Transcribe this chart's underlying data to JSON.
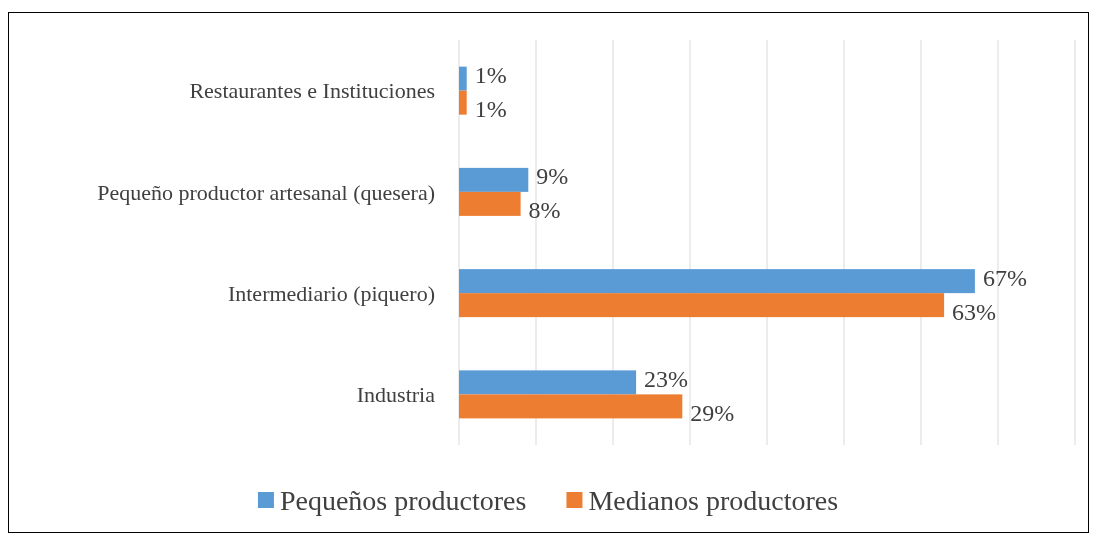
{
  "chart_data": {
    "type": "bar",
    "orientation": "horizontal",
    "categories": [
      "Restaurantes e Instituciones",
      "Pequeño productor artesanal (quesera)",
      "Intermediario (piquero)",
      "Industria"
    ],
    "series": [
      {
        "name": "Pequeños productores",
        "color": "#5b9bd5",
        "values": [
          1,
          9,
          67,
          23
        ],
        "value_labels": [
          "1%",
          "9%",
          "67%",
          "23%"
        ]
      },
      {
        "name": "Medianos productores",
        "color": "#ed7d31",
        "values": [
          1,
          8,
          63,
          29
        ],
        "value_labels": [
          "1%",
          "8%",
          "63%",
          "29%"
        ]
      }
    ],
    "xlim": [
      0,
      80
    ],
    "xticks": [
      {
        "value": 0,
        "label": null
      },
      {
        "value": 10,
        "label": null
      },
      {
        "value": 20,
        "label": null
      },
      {
        "value": 30,
        "label": null
      },
      {
        "value": 40,
        "label": null
      },
      {
        "value": 50,
        "label": null
      },
      {
        "value": 60,
        "label": null
      },
      {
        "value": 70,
        "label": null
      },
      {
        "value": 80,
        "label": null
      }
    ],
    "grid": "x",
    "legend": "bottom",
    "tick_labels": "y"
  }
}
